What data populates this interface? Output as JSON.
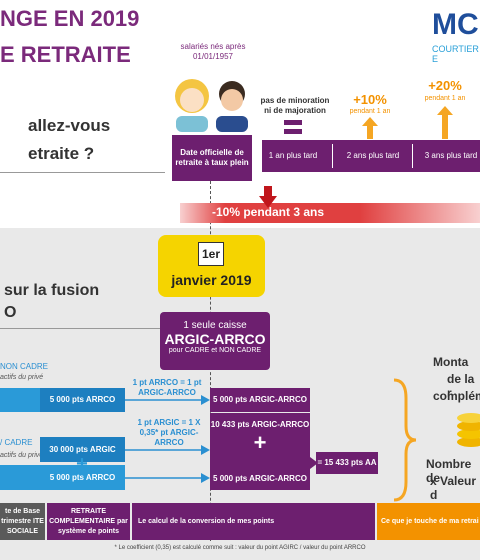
{
  "header": {
    "title_lines": [
      "NGE EN 2019",
      "E RETRAITE"
    ],
    "logo": "MC",
    "logo_sub": "COURTIER E"
  },
  "question_lines": [
    "allez-vous",
    "etraite ?"
  ],
  "timeline": {
    "born": "salariés nés après 01/01/1957",
    "official_date": "Date officielle de retraite à taux plein",
    "neutral": "pas de minoration ni de majoration",
    "bonus": [
      {
        "value": "+10%",
        "note": "pendant 1 an"
      },
      {
        "value": "+20%",
        "note": "pendant 1 an"
      }
    ],
    "steps": [
      "1 an plus tard",
      "2 ans plus tard",
      "3 ans plus tard"
    ],
    "malus": "-10% pendant 3 ans"
  },
  "calendar": {
    "day": "1er",
    "date": "janvier 2019"
  },
  "fusion": {
    "heading_lines": [
      "sur la fusion",
      "O"
    ],
    "caisse": {
      "line1": "1 seule caisse",
      "name": "ARGIC-ARRCO",
      "sub": "pour CADRE et NON CADRE"
    },
    "non_cadre": {
      "label": "NON CADRE",
      "sub": "actifs du privé",
      "points": "5 000 pts ARRCO",
      "rule": "1 pt ARRCO = 1 pt ARGIC-ARRCO",
      "result": "5 000 pts ARGIC-ARRCO"
    },
    "cadre": {
      "label": "/ CADRE",
      "sub": "actifs du privé",
      "points": [
        "30 000 pts ARGIC",
        "5 000 pts ARRCO"
      ],
      "plus": "+",
      "rule": "1 pt ARGIC = 1 X 0,35* pt ARGIC-ARRCO",
      "result": [
        "10 433 pts ARGIC-ARRCO",
        "5 000 pts ARGIC-ARRCO"
      ],
      "total": "= 15 433 pts AA"
    },
    "right_top": [
      "Monta",
      "de la r",
      "complém"
    ],
    "right_bottom": [
      "Nombre de",
      "x Valeur d"
    ]
  },
  "footer": {
    "cells": [
      "te de Base trimestre ITE SOCIALE",
      "RETRAITE COMPLEMENTAIRE par système de points",
      "Le calcul de la conversion de mes points",
      "Ce que je touche de ma retrai"
    ],
    "note": "* Le coefficient (0,35) est calculé comme suit : valeur du point AGIRC / valeur du point ARRCO"
  }
}
